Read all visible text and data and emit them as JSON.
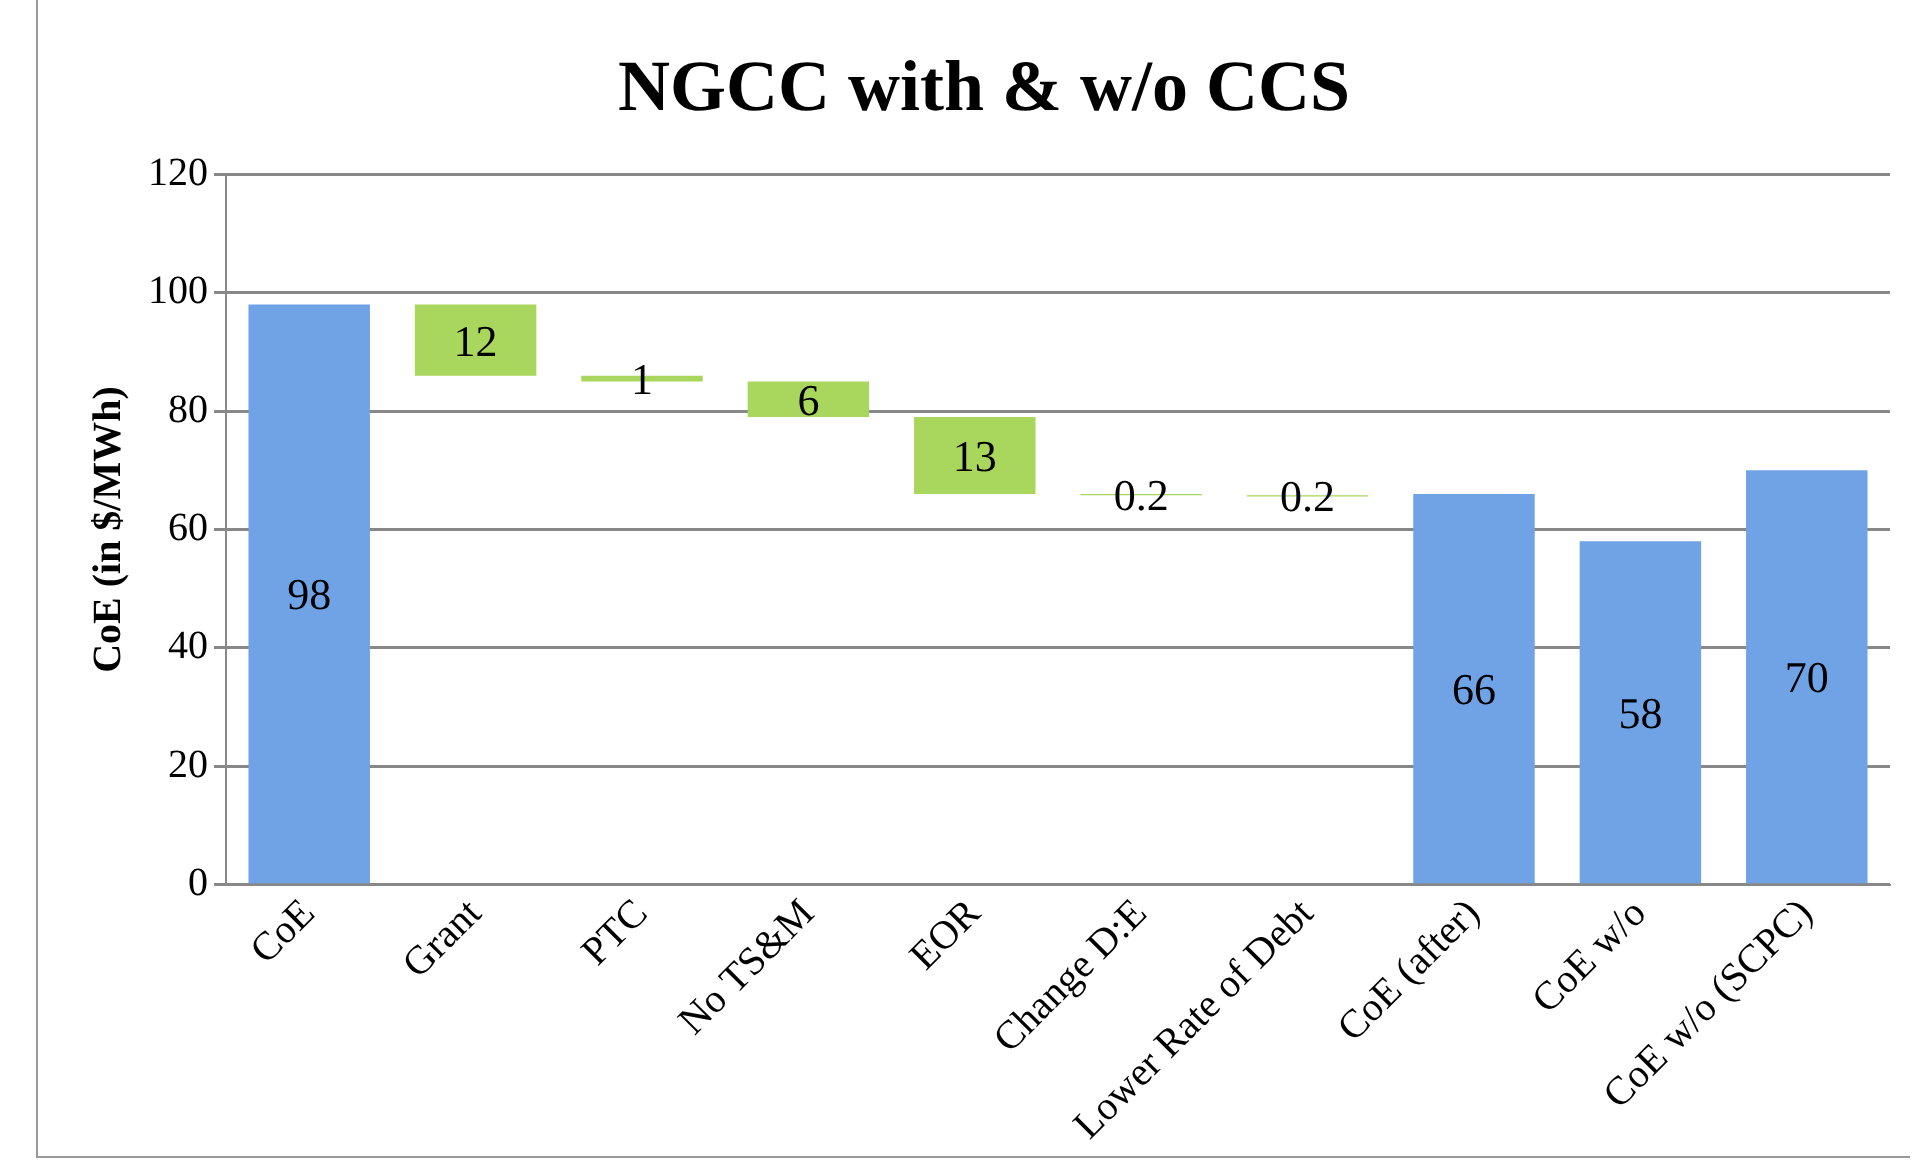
{
  "chart_data": {
    "type": "bar",
    "title": "NGCC with & w/o CCS",
    "ylabel": "CoE (in $/MWh)",
    "categories": [
      "CoE",
      "Grant",
      "PTC",
      "No TS&M",
      "EOR",
      "Change D:E",
      "Lower Rate of Debt",
      "CoE (after)",
      "CoE w/o",
      "CoE w/o (SCPC)"
    ],
    "values": [
      98,
      12,
      1,
      6,
      13,
      0.2,
      0.2,
      66,
      58,
      70
    ],
    "base": [
      null,
      86,
      85,
      79,
      66,
      65.8,
      65.6,
      null,
      null,
      null
    ],
    "colors": [
      "#6fa3e6",
      "#a9d65c",
      "#a9d65c",
      "#a9d65c",
      "#a9d65c",
      "#a9d65c",
      "#a9d65c",
      "#6fa3e6",
      "#6fa3e6",
      "#6fa3e6"
    ],
    "ylim": [
      0,
      120
    ],
    "yticks": [
      0,
      20,
      40,
      60,
      80,
      100,
      120
    ],
    "grid": "y",
    "data_labels": true,
    "legend": false
  }
}
